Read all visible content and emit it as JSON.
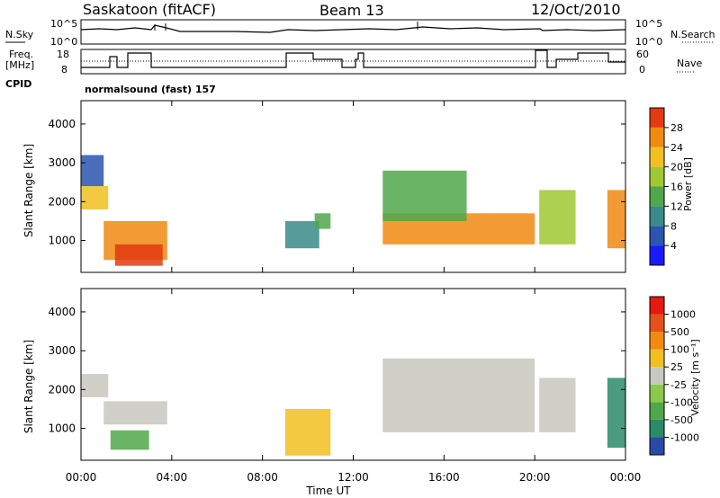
{
  "header": {
    "station": "Saskatoon (fitACF)",
    "beam": "Beam 13",
    "date": "12/Oct/2010"
  },
  "aux_panel": {
    "nsky_label": "N.Sky",
    "nsky_ticks": [
      "10^5",
      "10^0"
    ],
    "nsearch_label": "N.Search",
    "nsearch_ticks": [
      "10^5",
      "10^0"
    ],
    "freq_label_line1": "Freq.",
    "freq_label_line2": "[MHz]",
    "freq_ticks": [
      "18",
      "8"
    ],
    "nave_label": "Nave",
    "nave_ticks": [
      "60",
      "0"
    ],
    "cpid_label": "CPID",
    "cpid_text": "normalsound (fast) 157"
  },
  "chart_data": [
    {
      "type": "heatmap",
      "name": "power",
      "ylabel": "Slant Range [km]",
      "ylim": [
        180,
        4600
      ],
      "yticks": [
        1000,
        2000,
        3000,
        4000
      ],
      "xlim_hours": [
        0,
        24
      ],
      "colorbar": {
        "label": "Power [dB]",
        "ticks": [
          "4",
          "8",
          "12",
          "16",
          "20",
          "24",
          "28"
        ],
        "colors": [
          "#1a1aff",
          "#2a55b0",
          "#3a8a8a",
          "#4fa84a",
          "#9fc832",
          "#f0c020",
          "#f08a10",
          "#e33a10"
        ]
      },
      "regions": [
        {
          "t": [
            0.0,
            1.2
          ],
          "r": [
            1800,
            2400
          ],
          "level": 5
        },
        {
          "t": [
            0.0,
            1.0
          ],
          "r": [
            2400,
            3200
          ],
          "level": 1
        },
        {
          "t": [
            1.0,
            3.8
          ],
          "r": [
            500,
            1500
          ],
          "level": 6
        },
        {
          "t": [
            1.5,
            3.6
          ],
          "r": [
            350,
            900
          ],
          "level": 7
        },
        {
          "t": [
            9.0,
            10.5
          ],
          "r": [
            800,
            1500
          ],
          "level": 2
        },
        {
          "t": [
            10.3,
            11.0
          ],
          "r": [
            1300,
            1700
          ],
          "level": 3
        },
        {
          "t": [
            13.3,
            20.0
          ],
          "r": [
            900,
            1700
          ],
          "level": 6
        },
        {
          "t": [
            13.3,
            17.0
          ],
          "r": [
            1500,
            2800
          ],
          "level": 3
        },
        {
          "t": [
            20.2,
            21.8
          ],
          "r": [
            900,
            2300
          ],
          "level": 4
        },
        {
          "t": [
            23.2,
            24.0
          ],
          "r": [
            800,
            2300
          ],
          "level": 6
        }
      ]
    },
    {
      "type": "heatmap",
      "name": "velocity",
      "ylabel": "Slant Range [km]",
      "ylim": [
        180,
        4600
      ],
      "yticks": [
        1000,
        2000,
        3000,
        4000
      ],
      "xlim_hours": [
        0,
        24
      ],
      "xticks": [
        "00:00",
        "04:00",
        "08:00",
        "12:00",
        "16:00",
        "20:00",
        "00:00"
      ],
      "xlabel": "Time UT",
      "colorbar": {
        "label": "Velocity [m s⁻¹]",
        "ticks": [
          "1000",
          "500",
          "100",
          "25",
          "-25",
          "-100",
          "-500",
          "-1000"
        ],
        "colors": [
          "#2a4aa8",
          "#2a8a6a",
          "#4fa84a",
          "#8cc84a",
          "#c8c8c0",
          "#f0c020",
          "#f08a10",
          "#e8501a",
          "#e31a10"
        ]
      },
      "regions": [
        {
          "t": [
            0.0,
            1.2
          ],
          "r": [
            1800,
            2400
          ],
          "level": 4
        },
        {
          "t": [
            1.0,
            3.8
          ],
          "r": [
            1100,
            1700
          ],
          "level": 4
        },
        {
          "t": [
            1.3,
            3.0
          ],
          "r": [
            450,
            950
          ],
          "level": 2
        },
        {
          "t": [
            9.0,
            11.0
          ],
          "r": [
            300,
            1500
          ],
          "level": 5
        },
        {
          "t": [
            13.3,
            20.0
          ],
          "r": [
            900,
            2800
          ],
          "level": 4
        },
        {
          "t": [
            20.2,
            21.8
          ],
          "r": [
            900,
            2300
          ],
          "level": 4
        },
        {
          "t": [
            23.2,
            24.0
          ],
          "r": [
            500,
            2300
          ],
          "level": 1
        }
      ]
    }
  ]
}
